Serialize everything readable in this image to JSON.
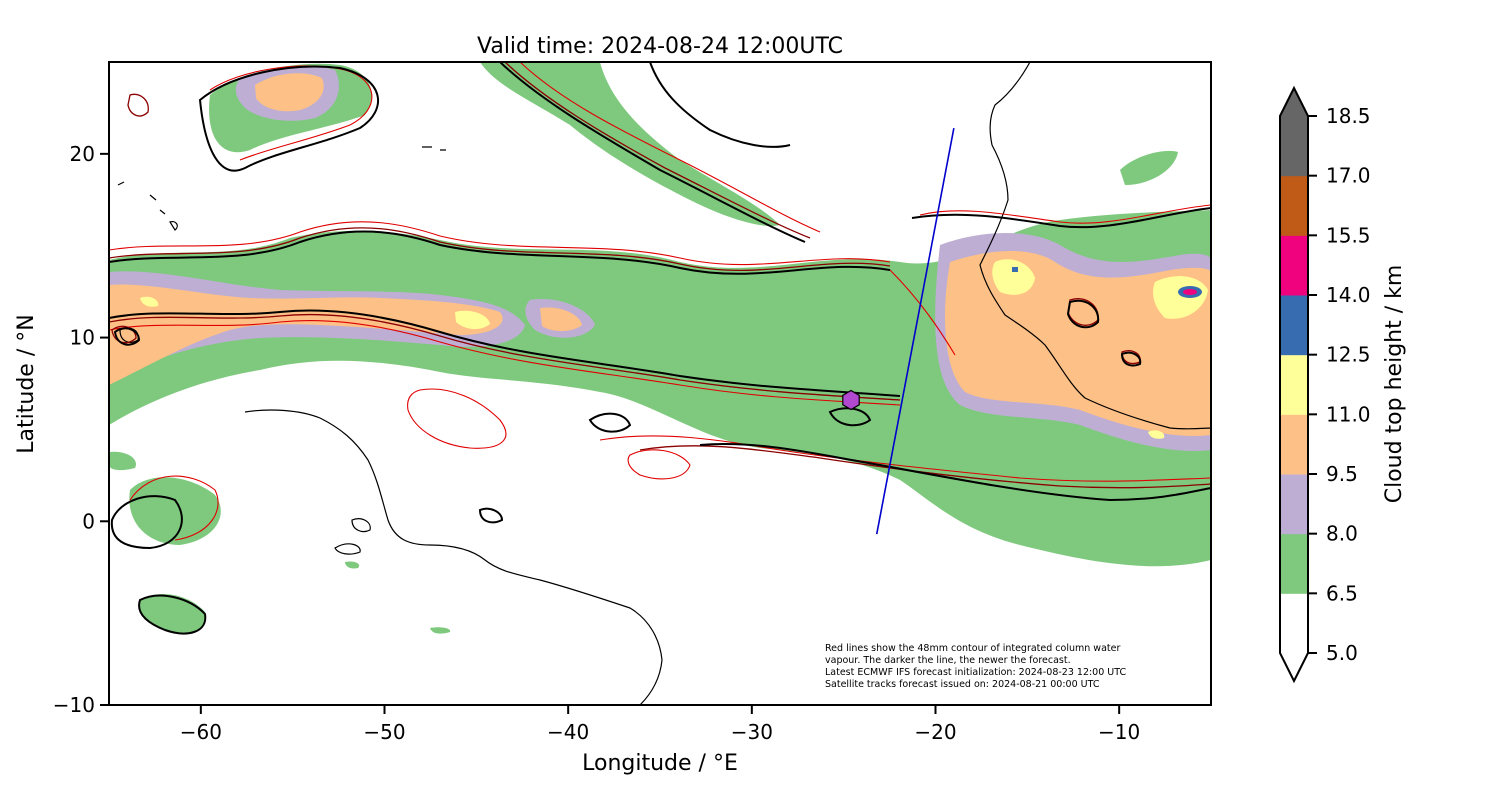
{
  "title": "Valid time: 2024-08-24 12:00UTC",
  "map": {
    "xlabel": "Longitude / °E",
    "ylabel": "Latitude / °N",
    "xlim": [
      -65,
      -5
    ],
    "ylim": [
      -10,
      25
    ],
    "xticks": [
      -60,
      -50,
      -40,
      -30,
      -20,
      -10
    ],
    "yticks": [
      -10,
      0,
      10,
      20
    ],
    "xtick_labels": [
      "−60",
      "−50",
      "−40",
      "−30",
      "−20",
      "−10"
    ],
    "ytick_labels": [
      "−10",
      "0",
      "10",
      "20"
    ],
    "satellite_track": {
      "color": "#0000cc",
      "start": [
        -23.2,
        -0.7
      ],
      "end": [
        -19.0,
        21.4
      ]
    },
    "marker": {
      "shape": "hexagon",
      "lon": -24.6,
      "lat": 6.6,
      "color": "#b048d0"
    }
  },
  "annotation": {
    "lines": [
      "Red lines show the 48mm contour of integrated column water",
      "vapour. The darker the line, the newer the forecast.",
      "Latest ECMWF IFS forecast initialization: 2024-08-23 12:00 UTC",
      "Satellite tracks forecast issued on: 2024-08-21 00:00 UTC"
    ]
  },
  "colorbar": {
    "label": "Cloud top height / km",
    "extend": "both",
    "levels": [
      "5.0",
      "6.5",
      "8.0",
      "9.5",
      "11.0",
      "12.5",
      "14.0",
      "15.5",
      "17.0",
      "18.5"
    ],
    "colors": [
      "#ffffff",
      "#7fc97f",
      "#beaed4",
      "#fdc086",
      "#ffff99",
      "#386cb0",
      "#f0027f",
      "#bf5b17",
      "#666666"
    ]
  }
}
